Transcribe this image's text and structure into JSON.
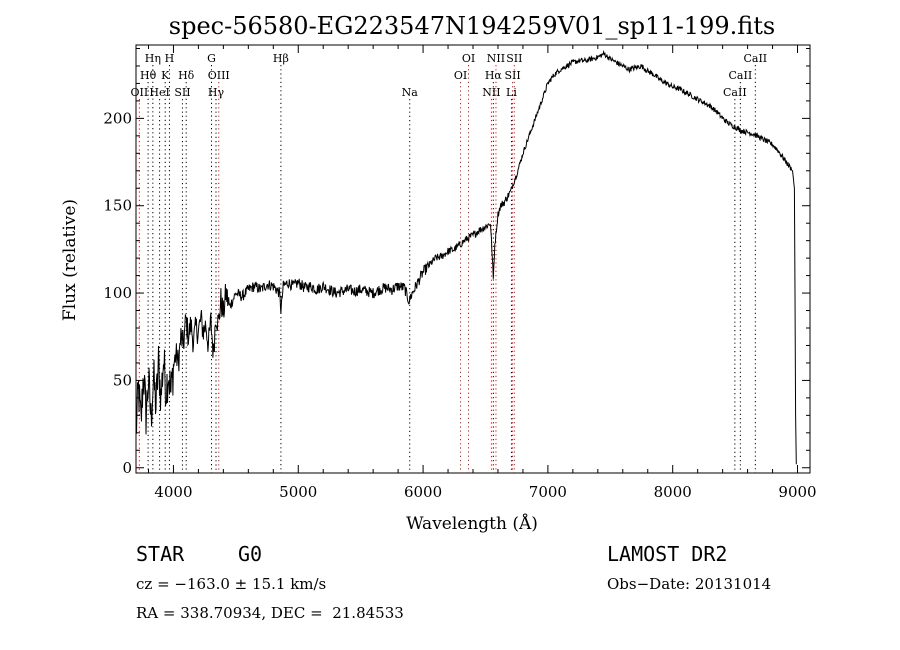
{
  "chart_data": {
    "type": "line",
    "title": "spec-56580-EG223547N194259V01_sp11-199.fits",
    "xlabel": "Wavelength (Å)",
    "ylabel": "Flux (relative)",
    "xlim": [
      3700,
      9100
    ],
    "ylim": [
      -3,
      242
    ],
    "x_ticks": [
      4000,
      5000,
      6000,
      7000,
      8000,
      9000
    ],
    "y_ticks": [
      0,
      50,
      100,
      150,
      200
    ],
    "grid": false,
    "series": [
      {
        "values": [
          [
            3700,
            20
          ],
          [
            3720,
            45
          ],
          [
            3740,
            25
          ],
          [
            3760,
            55
          ],
          [
            3780,
            30
          ],
          [
            3800,
            50
          ],
          [
            3820,
            28
          ],
          [
            3840,
            52
          ],
          [
            3860,
            35
          ],
          [
            3880,
            60
          ],
          [
            3900,
            40
          ],
          [
            3920,
            62
          ],
          [
            3940,
            45
          ],
          [
            3960,
            55
          ],
          [
            3980,
            42
          ],
          [
            4000,
            58
          ],
          [
            4020,
            65
          ],
          [
            4040,
            60
          ],
          [
            4060,
            75
          ],
          [
            4080,
            70
          ],
          [
            4100,
            85
          ],
          [
            4120,
            75
          ],
          [
            4140,
            82
          ],
          [
            4160,
            72
          ],
          [
            4180,
            80
          ],
          [
            4200,
            78
          ],
          [
            4220,
            85
          ],
          [
            4240,
            78
          ],
          [
            4260,
            82
          ],
          [
            4280,
            70
          ],
          [
            4300,
            84
          ],
          [
            4320,
            65
          ],
          [
            4340,
            88
          ],
          [
            4360,
            82
          ],
          [
            4380,
            96
          ],
          [
            4400,
            88
          ],
          [
            4420,
            100
          ],
          [
            4450,
            92
          ],
          [
            4500,
            100
          ],
          [
            4550,
            98
          ],
          [
            4600,
            102
          ],
          [
            4650,
            104
          ],
          [
            4700,
            102
          ],
          [
            4750,
            105
          ],
          [
            4800,
            104
          ],
          [
            4850,
            100
          ],
          [
            4861,
            90
          ],
          [
            4880,
            104
          ],
          [
            4920,
            106
          ],
          [
            4960,
            104
          ],
          [
            5000,
            106
          ],
          [
            5050,
            103
          ],
          [
            5100,
            104
          ],
          [
            5150,
            102
          ],
          [
            5200,
            104
          ],
          [
            5250,
            102
          ],
          [
            5300,
            100
          ],
          [
            5350,
            101
          ],
          [
            5400,
            102
          ],
          [
            5450,
            101
          ],
          [
            5500,
            102
          ],
          [
            5550,
            101
          ],
          [
            5600,
            100
          ],
          [
            5650,
            102
          ],
          [
            5700,
            103
          ],
          [
            5750,
            102
          ],
          [
            5800,
            104
          ],
          [
            5850,
            103
          ],
          [
            5890,
            95
          ],
          [
            5900,
            98
          ],
          [
            5950,
            105
          ],
          [
            6000,
            112
          ],
          [
            6050,
            116
          ],
          [
            6100,
            120
          ],
          [
            6150,
            121
          ],
          [
            6200,
            124
          ],
          [
            6250,
            125
          ],
          [
            6300,
            128
          ],
          [
            6350,
            131
          ],
          [
            6400,
            133
          ],
          [
            6450,
            136
          ],
          [
            6500,
            138
          ],
          [
            6540,
            140
          ],
          [
            6555,
            120
          ],
          [
            6563,
            108
          ],
          [
            6575,
            128
          ],
          [
            6600,
            145
          ],
          [
            6620,
            150
          ],
          [
            6650,
            152
          ],
          [
            6700,
            158
          ],
          [
            6750,
            168
          ],
          [
            6800,
            180
          ],
          [
            6850,
            190
          ],
          [
            6900,
            200
          ],
          [
            6950,
            210
          ],
          [
            7000,
            220
          ],
          [
            7050,
            225
          ],
          [
            7100,
            228
          ],
          [
            7150,
            230
          ],
          [
            7200,
            232
          ],
          [
            7250,
            233
          ],
          [
            7300,
            233
          ],
          [
            7350,
            234
          ],
          [
            7400,
            235
          ],
          [
            7450,
            237
          ],
          [
            7500,
            234
          ],
          [
            7550,
            232
          ],
          [
            7600,
            230
          ],
          [
            7650,
            228
          ],
          [
            7700,
            229
          ],
          [
            7750,
            230
          ],
          [
            7800,
            227
          ],
          [
            7850,
            225
          ],
          [
            7900,
            222
          ],
          [
            7950,
            220
          ],
          [
            8000,
            218
          ],
          [
            8050,
            217
          ],
          [
            8100,
            215
          ],
          [
            8150,
            213
          ],
          [
            8200,
            211
          ],
          [
            8250,
            209
          ],
          [
            8300,
            207
          ],
          [
            8350,
            204
          ],
          [
            8400,
            200
          ],
          [
            8450,
            197
          ],
          [
            8500,
            195
          ],
          [
            8550,
            193
          ],
          [
            8600,
            192
          ],
          [
            8650,
            191
          ],
          [
            8700,
            189
          ],
          [
            8750,
            187
          ],
          [
            8800,
            185
          ],
          [
            8840,
            182
          ],
          [
            8860,
            180
          ],
          [
            8900,
            176
          ],
          [
            8940,
            172
          ],
          [
            8960,
            170
          ],
          [
            8975,
            160
          ],
          [
            8980,
            100
          ],
          [
            8985,
            30
          ],
          [
            8990,
            2
          ]
        ]
      }
    ],
    "lines": [
      {
        "label": "OII",
        "x": 3727,
        "row": 2,
        "color": "#ff0000"
      },
      {
        "label": "Hθ",
        "x": 3797,
        "row": 1,
        "color": "#000000"
      },
      {
        "label": "Hη",
        "x": 3835,
        "row": 0,
        "color": "#000000"
      },
      {
        "label": "HeI",
        "x": 3889,
        "row": 2,
        "color": "#000000"
      },
      {
        "label": "K",
        "x": 3934,
        "row": 1,
        "color": "#000000"
      },
      {
        "label": "H",
        "x": 3968,
        "row": 0,
        "color": "#000000"
      },
      {
        "label": "SII",
        "x": 4072,
        "row": 2,
        "color": "#000000"
      },
      {
        "label": "Hδ",
        "x": 4102,
        "row": 1,
        "color": "#000000"
      },
      {
        "label": "G",
        "x": 4305,
        "row": 0,
        "color": "#000000"
      },
      {
        "label": "Hγ",
        "x": 4341,
        "row": 2,
        "color": "#000000"
      },
      {
        "label": "OIII",
        "x": 4363,
        "row": 1,
        "color": "#ff0000"
      },
      {
        "label": "Hβ",
        "x": 4861,
        "row": 0,
        "color": "#000000"
      },
      {
        "label": "Na",
        "x": 5893,
        "row": 2,
        "color": "#000000"
      },
      {
        "label": "OI",
        "x": 6300,
        "row": 1,
        "color": "#ff0000"
      },
      {
        "label": "OI",
        "x": 6364,
        "row": 0,
        "color": "#ff0000"
      },
      {
        "label": "NII",
        "x": 6548,
        "row": 2,
        "color": "#ff0000"
      },
      {
        "label": "Hα",
        "x": 6563,
        "row": 1,
        "color": "#000000"
      },
      {
        "label": "NII",
        "x": 6584,
        "row": 0,
        "color": "#ff0000"
      },
      {
        "label": "Li",
        "x": 6708,
        "row": 2,
        "color": "#000000"
      },
      {
        "label": "SII",
        "x": 6717,
        "row": 1,
        "color": "#ff0000"
      },
      {
        "label": "SII",
        "x": 6731,
        "row": 0,
        "color": "#ff0000"
      },
      {
        "label": "CaII",
        "x": 8498,
        "row": 2,
        "color": "#000000"
      },
      {
        "label": "CaII",
        "x": 8542,
        "row": 1,
        "color": "#000000"
      },
      {
        "label": "CaII",
        "x": 8662,
        "row": 0,
        "color": "#000000"
      }
    ]
  },
  "info": {
    "object_class": "STAR",
    "subclass": "G0",
    "survey": "LAMOST DR2",
    "redshift": "cz = −163.0 ± 15.1 km/s",
    "obs_date": "Obs−Date: 20131014",
    "coords": "RA = 338.70934, DEC =  21.84533"
  }
}
